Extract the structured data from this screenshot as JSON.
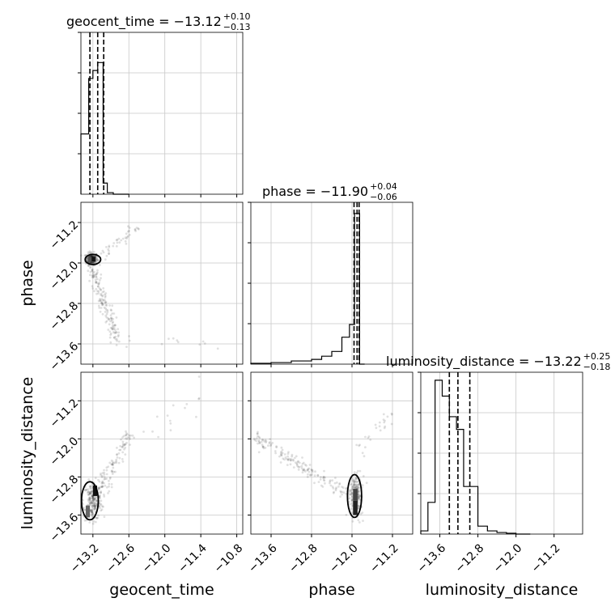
{
  "chart_data": {
    "type": "corner",
    "parameters": [
      "geocent_time",
      "phase",
      "luminosity_distance"
    ],
    "titles": [
      {
        "name": "geocent_time",
        "text": "geocent_time = −13.12",
        "plus": "+0.10",
        "minus": "−0.13",
        "median": -13.12,
        "q_low": -13.25,
        "q_high": -13.02
      },
      {
        "name": "phase",
        "text": "phase = −11.90",
        "plus": "+0.04",
        "minus": "−0.06",
        "median": -11.9,
        "q_low": -11.96,
        "q_high": -11.86
      },
      {
        "name": "luminosity_distance",
        "text": "luminosity_distance = −13.22",
        "plus": "+0.25",
        "minus": "−0.18",
        "median": -13.22,
        "q_low": -13.4,
        "q_high": -12.97
      }
    ],
    "axis_ranges": {
      "geocent_time": [
        -13.4,
        -10.7
      ],
      "phase": [
        -14.0,
        -10.8
      ],
      "luminosity_distance": [
        -14.0,
        -10.6
      ]
    },
    "ticks": {
      "geocent_time": [
        -13.2,
        -12.6,
        -12.0,
        -11.4,
        -10.8
      ],
      "phase": [
        -13.6,
        -12.8,
        -12.0,
        -11.2
      ],
      "luminosity_distance": [
        -13.6,
        -12.8,
        -12.0,
        -11.2
      ]
    },
    "tick_labels": {
      "geocent_time": [
        "−13.2",
        "−12.6",
        "−12.0",
        "−11.4",
        "−10.8"
      ],
      "phase_x": [
        "−13.6",
        "−12.8",
        "−12.0",
        "−11.2"
      ],
      "luminosity_distance_x": [
        "−13.6",
        "−12.8",
        "−12.0",
        "−11.2"
      ],
      "phase_y": [
        "−11.2",
        "−12.0",
        "−12.8",
        "−13.6"
      ],
      "luminosity_distance_y": [
        "−11.2",
        "−12.0",
        "−12.8",
        "−13.6"
      ]
    },
    "axis_labels": {
      "x": [
        "geocent_time",
        "phase",
        "luminosity_distance"
      ],
      "y": [
        "phase",
        "luminosity_distance"
      ]
    },
    "histograms": {
      "geocent_time": {
        "bin_edges": [
          -13.4,
          -13.27,
          -13.2,
          -13.12,
          -13.03,
          -12.96,
          -12.86,
          -12.79,
          -12.7,
          -12.6
        ],
        "counts": [
          0.38,
          0.73,
          0.78,
          0.83,
          0.07,
          0.01,
          0.0,
          0.0,
          0.0
        ]
      },
      "phase": {
        "bin_edges": [
          -14.0,
          -13.6,
          -13.2,
          -12.8,
          -12.6,
          -12.4,
          -12.2,
          -12.05,
          -11.95,
          -11.85,
          -11.75
        ],
        "counts": [
          0.005,
          0.01,
          0.02,
          0.03,
          0.05,
          0.08,
          0.17,
          0.25,
          0.95,
          0.0
        ]
      },
      "luminosity_distance": {
        "bin_edges": [
          -14.0,
          -13.85,
          -13.7,
          -13.55,
          -13.4,
          -13.25,
          -13.1,
          -12.95,
          -12.8,
          -12.6,
          -12.4,
          -12.2,
          -12.0,
          -11.7
        ],
        "counts": [
          0.02,
          0.2,
          0.97,
          0.87,
          0.74,
          0.66,
          0.3,
          0.3,
          0.05,
          0.02,
          0.01,
          0.005,
          0.0
        ]
      }
    },
    "scatter_trends": {
      "phase_vs_geocent_time": "cluster near geocent_time −13.2, phase −11.9; tail running down-right to phase −13.6 and up-right to −11.2",
      "luminosity_distance_vs_geocent_time": "positive correlation from (−13.3, −13.6) to (−11.4, −10.9)",
      "luminosity_distance_vs_phase": "negative correlation from phase −13.8 (ld −12.0) to phase −12.0 (ld −13.2), cluster at phase −11.9"
    },
    "grid": true,
    "legend": "none"
  }
}
